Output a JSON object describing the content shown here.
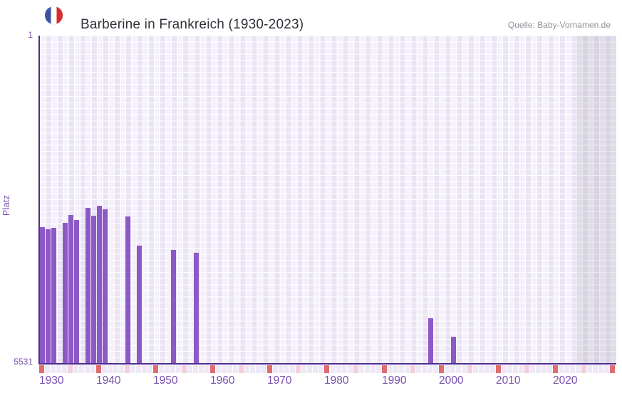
{
  "header": {
    "source": "Quelle: Baby-Vornamen.de",
    "flag_icon": "france-flag-icon"
  },
  "chart_data": {
    "type": "bar",
    "title": "Barberine in Frankreich (1930-2023)",
    "ylabel": "Platz",
    "y_axis": {
      "top_label": "1",
      "bottom_label": "5531",
      "min": 1,
      "max": 5531,
      "inverted": true,
      "scale": "linear-estimate"
    },
    "x_axis": {
      "start": 1930,
      "end": 2030,
      "data_end": 2023,
      "shaded_from": 2024,
      "tick_years": [
        1930,
        1940,
        1950,
        1960,
        1970,
        1980,
        1990,
        2000,
        2010,
        2020
      ]
    },
    "legend": "none",
    "grid": true,
    "series": [
      {
        "name": "Platz",
        "points": [
          {
            "year": 1930,
            "platz": 3232
          },
          {
            "year": 1931,
            "platz": 3274
          },
          {
            "year": 1932,
            "platz": 3244
          },
          {
            "year": 1934,
            "platz": 3160
          },
          {
            "year": 1935,
            "platz": 3034
          },
          {
            "year": 1936,
            "platz": 3112
          },
          {
            "year": 1938,
            "platz": 2913
          },
          {
            "year": 1939,
            "platz": 3040
          },
          {
            "year": 1940,
            "platz": 2871
          },
          {
            "year": 1941,
            "platz": 2931
          },
          {
            "year": 1945,
            "platz": 3058
          },
          {
            "year": 1947,
            "platz": 3543
          },
          {
            "year": 1953,
            "platz": 3620
          },
          {
            "year": 1957,
            "platz": 3663
          },
          {
            "year": 1998,
            "platz": 4775
          },
          {
            "year": 2002,
            "platz": 5083
          }
        ]
      }
    ],
    "colors": {
      "bar": "#8c59c6",
      "axis_line": "#4e2c90",
      "tick_text": "#7a50ae",
      "grid_base": "#e9e3f4",
      "future_shade": "rgba(106,99,128,0.14)",
      "strip_decade": "#e06c6c",
      "strip_half_decade": "#f3cfd9",
      "strip_default": "#efe9f7",
      "flag_blue": "#3d51a5",
      "flag_red": "#da2c2c",
      "title_text": "#33323c",
      "source_text": "#90909a"
    }
  }
}
